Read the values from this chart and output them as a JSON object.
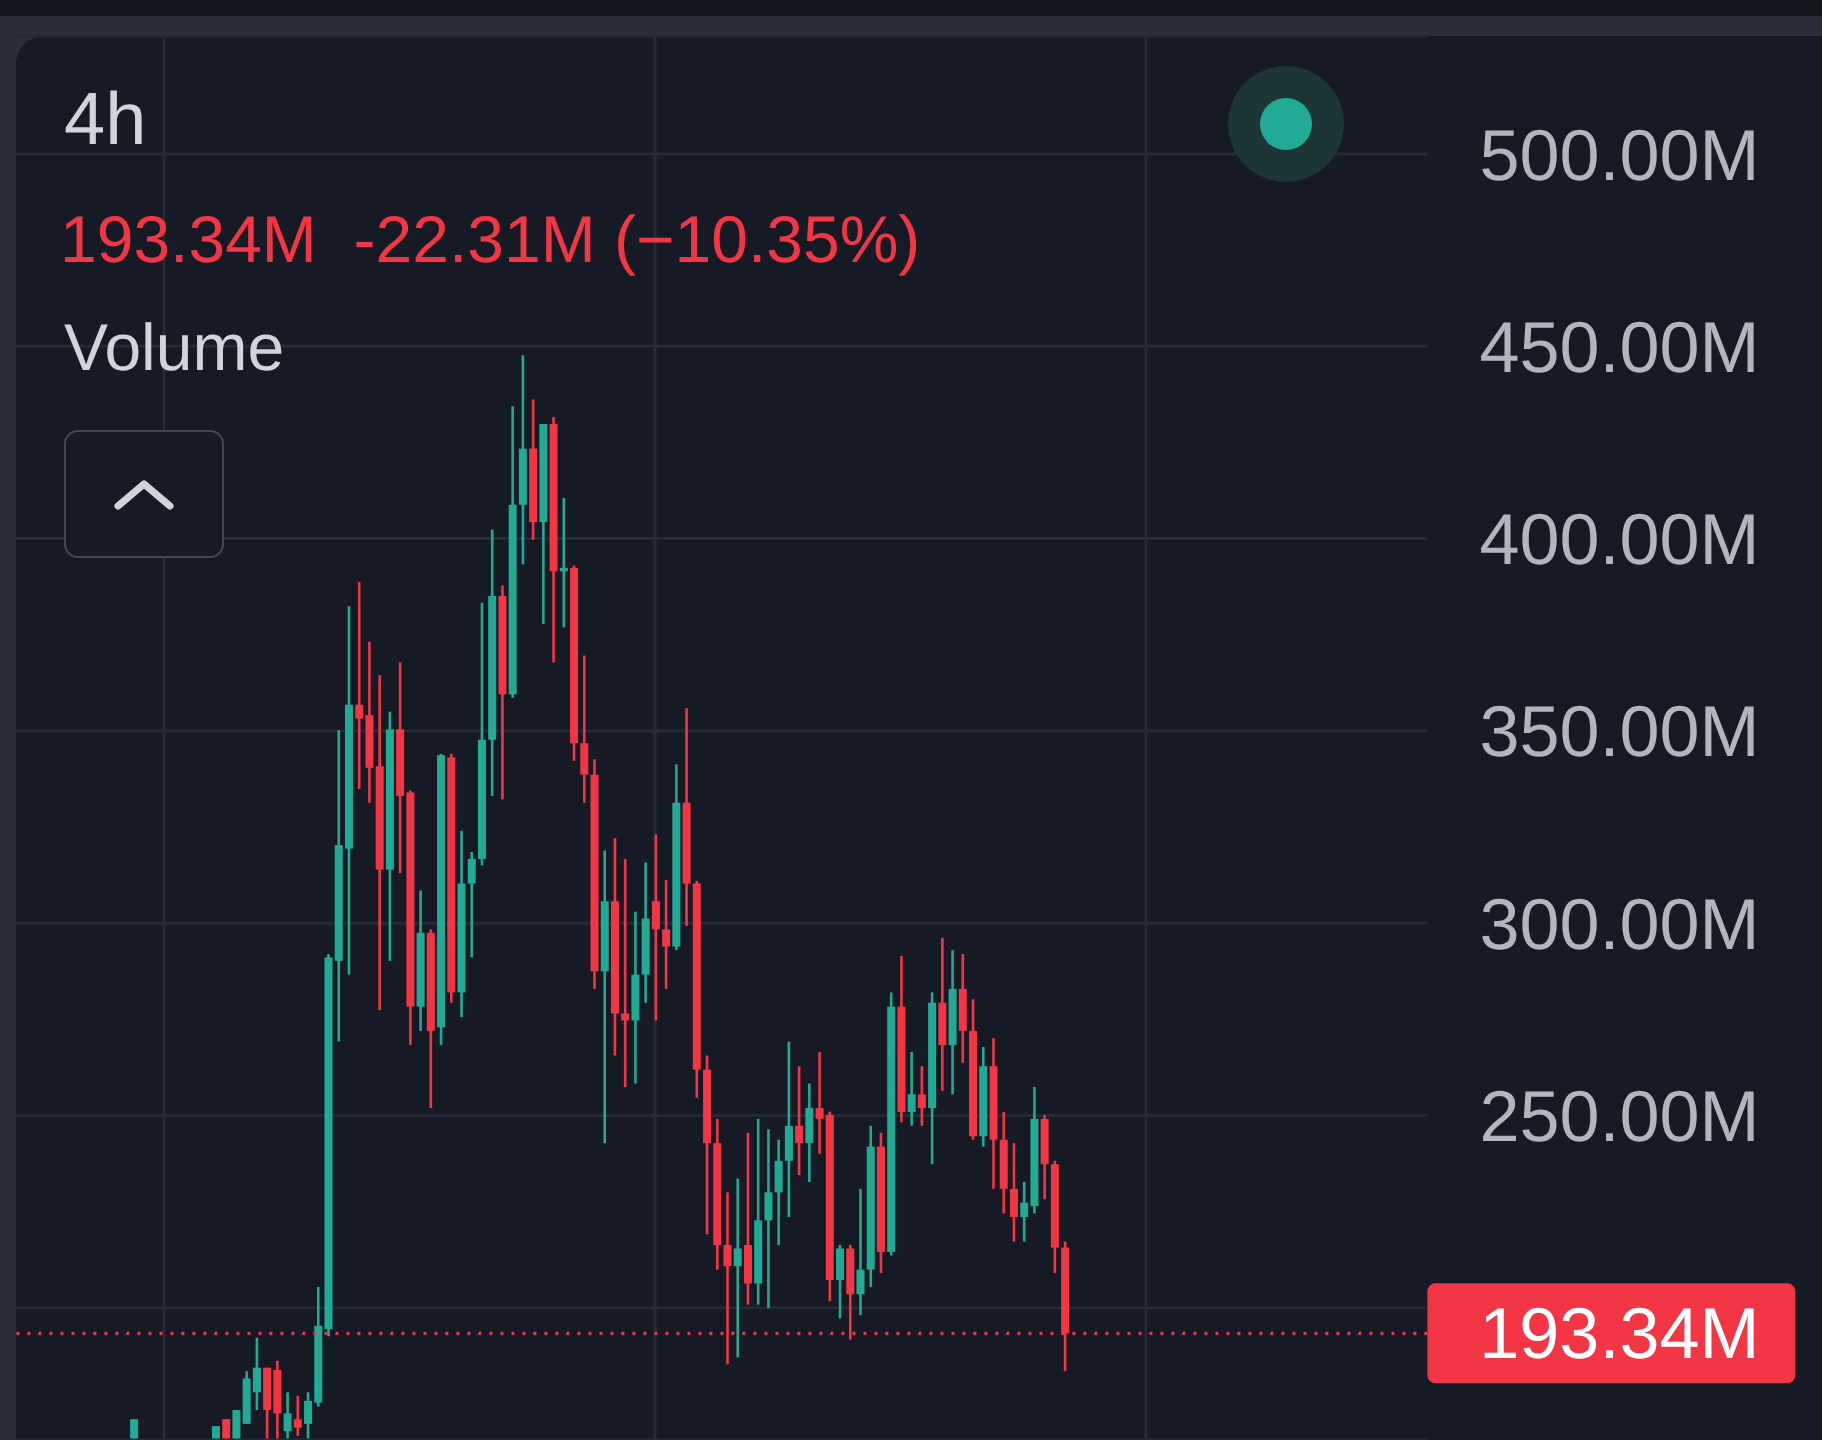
{
  "chart_data": {
    "type": "candlestick",
    "title": "4h",
    "annotations": [
      "193.34M  -22.31M (−10.35%)",
      "Volume"
    ],
    "categories": [
      null,
      null,
      null,
      null,
      null,
      null,
      null,
      null,
      null,
      null,
      null,
      null,
      null,
      null,
      null,
      null,
      null,
      null,
      null,
      null,
      null,
      null,
      null,
      null,
      null,
      null,
      null,
      null,
      null,
      null,
      null,
      null,
      null,
      null,
      null,
      null,
      null,
      null,
      null,
      null,
      null,
      null,
      null,
      null,
      null,
      null,
      null,
      null,
      null,
      null,
      null,
      null,
      null,
      null,
      null,
      null,
      null,
      null,
      null,
      null,
      null,
      null,
      null,
      null,
      null,
      null,
      null,
      null,
      null,
      null,
      null,
      null,
      null,
      null,
      null,
      null,
      null,
      null,
      null,
      null,
      null,
      null,
      null,
      null,
      null,
      null,
      null,
      null,
      null,
      null,
      null,
      null,
      null,
      null,
      null,
      null,
      null,
      null,
      null,
      null,
      null,
      null,
      null,
      null,
      null,
      null,
      null,
      null,
      null,
      null,
      null,
      null,
      null,
      null,
      null,
      null,
      null,
      null,
      null,
      null,
      null,
      null,
      null,
      null,
      null,
      null,
      null,
      null,
      null,
      null,
      null,
      null,
      null,
      null,
      null,
      null,
      null,
      null
    ],
    "ohlc": [
      null,
      null,
      null,
      null,
      null,
      null,
      null,
      null,
      null,
      null,
      null,
      [
        166,
        171,
        166,
        171
      ],
      null,
      null,
      null,
      null,
      null,
      null,
      null,
      [
        166,
        169.2,
        166,
        169.2
      ],
      [
        171,
        171,
        166,
        166
      ],
      [
        166,
        173.4,
        166,
        173.4
      ],
      [
        169.8,
        183.5,
        169.8,
        181.6
      ],
      [
        178,
        192.2,
        173.4,
        184.4
      ],
      [
        184.4,
        184.4,
        166,
        173.4
      ],
      [
        183.8,
        186.2,
        166,
        172.5
      ],
      [
        167.9,
        178,
        166,
        172.5
      ],
      [
        171,
        177.1,
        166.7,
        168.8
      ],
      [
        169.8,
        178,
        166,
        175.8
      ],
      [
        175.3,
        205.4,
        174.3,
        195.3
      ],
      [
        194.4,
        292,
        192.6,
        291.1
      ],
      [
        290.2,
        350.2,
        269.2,
        320.3
      ],
      [
        319.4,
        382.4,
        286.6,
        356.8
      ],
      [
        356.8,
        388.7,
        334.9,
        353.2
      ],
      [
        354.1,
        373.2,
        331.3,
        340.4
      ],
      [
        340.8,
        364.5,
        277.4,
        313.9
      ],
      [
        313.9,
        355,
        290.2,
        350.4
      ],
      [
        350.4,
        367.8,
        313,
        333.1
      ],
      [
        334,
        334.5,
        268.3,
        278.3
      ],
      [
        278.3,
        308.5,
        272,
        297.5
      ],
      [
        297.5,
        298.4,
        251.9,
        272
      ],
      [
        272.9,
        344,
        268.3,
        343.7
      ],
      [
        343.1,
        344,
        279.3,
        282
      ],
      [
        282,
        324,
        275.6,
        310.3
      ],
      [
        310.3,
        318.5,
        291.1,
        316.7
      ],
      [
        316.7,
        383.3,
        315,
        347.7
      ],
      [
        347.7,
        402.4,
        333.1,
        385.1
      ],
      [
        385.1,
        387.8,
        332.2,
        359.5
      ],
      [
        359.5,
        434.4,
        358.6,
        408.8
      ],
      [
        408.8,
        447.7,
        393.3,
        423.4
      ],
      [
        423.4,
        436.2,
        399.7,
        404.3
      ],
      [
        404.3,
        429.8,
        377.8,
        429.8
      ],
      [
        429.8,
        431.6,
        367.8,
        391.5
      ],
      [
        391.5,
        410.6,
        376.9,
        392.4
      ],
      [
        392.4,
        393,
        342.2,
        346.8
      ],
      [
        346.8,
        369.6,
        331.3,
        338.6
      ],
      [
        338.6,
        342.6,
        282.9,
        287.5
      ],
      [
        287.5,
        318.9,
        242.8,
        305.7
      ],
      [
        305.7,
        322.1,
        265.6,
        276.5
      ],
      [
        276.5,
        316.7,
        257.4,
        274.7
      ],
      [
        274.7,
        303,
        258.3,
        286.6
      ],
      [
        286.6,
        315.8,
        279.3,
        301.2
      ],
      [
        305.7,
        323.1,
        274.7,
        298.4
      ],
      [
        298.4,
        311.2,
        282.9,
        293.9
      ],
      [
        293.9,
        341.3,
        293,
        331.3
      ],
      [
        331.3,
        355.9,
        299.3,
        310.3
      ],
      [
        310.3,
        311,
        254.6,
        261.9
      ],
      [
        261.9,
        265.6,
        219.1,
        242.8
      ],
      [
        242.8,
        249.1,
        209.9,
        216.3
      ],
      [
        216.3,
        230,
        185.3,
        210.8
      ],
      [
        210.8,
        233.6,
        187.1,
        215.4
      ],
      [
        216.3,
        245.5,
        200.8,
        206.3
      ],
      [
        206.3,
        249.1,
        200.8,
        222.7
      ],
      [
        222.7,
        246.4,
        199.9,
        230
      ],
      [
        230,
        243.7,
        216.3,
        238.2
      ],
      [
        238.2,
        269.2,
        223.6,
        247.3
      ],
      [
        247.3,
        262.8,
        234.5,
        242.8
      ],
      [
        242.8,
        258.3,
        232.7,
        251.9
      ],
      [
        251.9,
        266.5,
        240,
        249.1
      ],
      [
        250.1,
        251,
        201.7,
        207.2
      ],
      [
        207.2,
        216.3,
        197.2,
        215.4
      ],
      [
        215.4,
        216.3,
        191.7,
        203.5
      ],
      [
        203.5,
        230.9,
        198.1,
        209.9
      ],
      [
        209.9,
        247.3,
        205.4,
        241.9
      ],
      [
        241.9,
        245.5,
        209,
        214.5
      ],
      [
        214.5,
        282,
        213.6,
        278.3
      ],
      [
        278.3,
        291.5,
        248.2,
        250.9
      ],
      [
        250.9,
        266.5,
        247.3,
        255.5
      ],
      [
        255.5,
        262.8,
        247.3,
        251.9
      ],
      [
        251.9,
        282,
        237.3,
        279.3
      ],
      [
        279.3,
        296.2,
        256.4,
        268.3
      ],
      [
        268.3,
        293,
        255.5,
        282.9
      ],
      [
        282.9,
        292,
        263.7,
        272
      ],
      [
        272,
        280.2,
        243.7,
        244.6
      ],
      [
        244.6,
        267.8,
        241.9,
        262.8
      ],
      [
        262.8,
        270.1,
        230.9,
        243.7
      ],
      [
        243.7,
        250.9,
        224.5,
        230.9
      ],
      [
        230.9,
        242.8,
        217.2,
        223.6
      ],
      [
        223.6,
        232.7,
        217.2,
        227.3
      ],
      [
        226.4,
        257.4,
        224.5,
        249.1
      ],
      [
        249.1,
        250.1,
        228.2,
        237.3
      ],
      [
        237.3,
        238.2,
        209,
        215.65
      ],
      [
        215.65,
        217.2,
        183.5,
        193.34
      ],
      null,
      null,
      null,
      null,
      null,
      null,
      null,
      null,
      null,
      null,
      null,
      null,
      null,
      null,
      null,
      null,
      null,
      null,
      null,
      null,
      null,
      null,
      null,
      null,
      null,
      null,
      null,
      null,
      null,
      null,
      null,
      null,
      null,
      null,
      null
    ],
    "colors": [
      null,
      null,
      null,
      null,
      null,
      null,
      null,
      null,
      null,
      null,
      null,
      "#22ab94",
      null,
      null,
      null,
      null,
      null,
      null,
      null,
      "#22ab94",
      "#f23645",
      "#22ab94",
      "#22ab94",
      "#22ab94",
      "#f23645",
      "#f23645",
      "#22ab94",
      "#f23645",
      "#22ab94",
      "#22ab94",
      "#22ab94",
      "#22ab94",
      "#22ab94",
      "#f23645",
      "#f23645",
      "#f23645",
      "#22ab94",
      "#f23645",
      "#f23645",
      "#22ab94",
      "#f23645",
      "#22ab94",
      "#f23645",
      "#22ab94",
      "#22ab94",
      "#22ab94",
      "#22ab94",
      "#f23645",
      "#22ab94",
      "#22ab94",
      "#f23645",
      "#22ab94",
      "#f23645",
      "#22ab94",
      "#f23645",
      "#f23645",
      "#f23645",
      "#22ab94",
      "#f23645",
      "#f23645",
      "#22ab94",
      "#22ab94",
      "#f23645",
      "#f23645",
      "#22ab94",
      "#f23645",
      "#f23645",
      "#f23645",
      "#f23645",
      "#f23645",
      "#22ab94",
      "#f23645",
      "#22ab94",
      "#22ab94",
      "#22ab94",
      "#22ab94",
      "#f23645",
      "#22ab94",
      "#f23645",
      "#f23645",
      "#22ab94",
      "#f23645",
      "#22ab94",
      "#22ab94",
      "#f23645",
      "#22ab94",
      "#f23645",
      "#22ab94",
      "#f23645",
      "#22ab94",
      "#f23645",
      "#22ab94",
      "#f23645",
      "#f23645",
      "#22ab94",
      "#f23645",
      "#f23645",
      "#f23645",
      "#22ab94",
      "#22ab94",
      "#f23645",
      "#f23645",
      "#f23645",
      null,
      null,
      null,
      null,
      null,
      null,
      null,
      null,
      null,
      null,
      null,
      null,
      null,
      null,
      null,
      null,
      null,
      null,
      null,
      null,
      null,
      null,
      null,
      null,
      null,
      null,
      null,
      null,
      null,
      null,
      null,
      null,
      null,
      null,
      null
    ],
    "ylim": [
      165.6,
      530.7
    ],
    "yticks": [
      {
        "value": 200,
        "label": null
      },
      {
        "value": 250,
        "label": "250.00M"
      },
      {
        "value": 300,
        "label": "300.00M"
      },
      {
        "value": 350,
        "label": "350.00M"
      },
      {
        "value": 400,
        "label": "400.00M"
      },
      {
        "value": 450,
        "label": "450.00M"
      },
      {
        "value": 500,
        "label": "500.00M"
      }
    ],
    "grid": true,
    "tick_labels": "y",
    "ref_lines": [
      {
        "axis": "y",
        "value": 193.34,
        "label": "193.34M",
        "color": "#f23645",
        "line_style": "dotted"
      }
    ]
  }
}
